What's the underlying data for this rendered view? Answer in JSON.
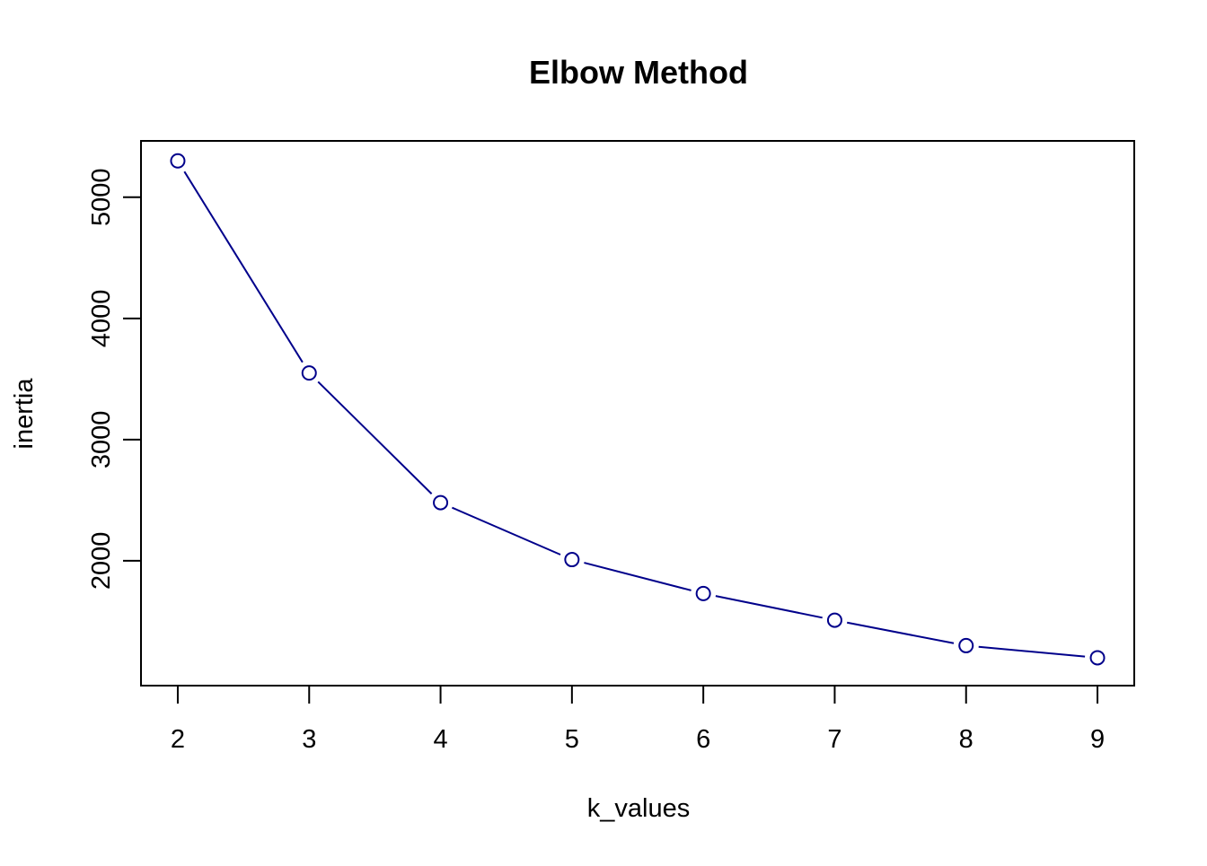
{
  "chart_data": {
    "type": "line",
    "title": "Elbow Method",
    "xlabel": "k_values",
    "ylabel": "inertia",
    "x": [
      2,
      3,
      4,
      5,
      6,
      7,
      8,
      9
    ],
    "series": [
      {
        "values": [
          5300,
          3550,
          2480,
          2010,
          1730,
          1510,
          1300,
          1200
        ]
      }
    ],
    "xlim": [
      1.72,
      9.28
    ],
    "ylim": [
      970,
      5465
    ],
    "x_ticks": [
      2,
      3,
      4,
      5,
      6,
      7,
      8,
      9
    ],
    "y_ticks": [
      2000,
      3000,
      4000,
      5000
    ],
    "grid": false,
    "marker": "open-circle",
    "line_color": "#00008B"
  }
}
